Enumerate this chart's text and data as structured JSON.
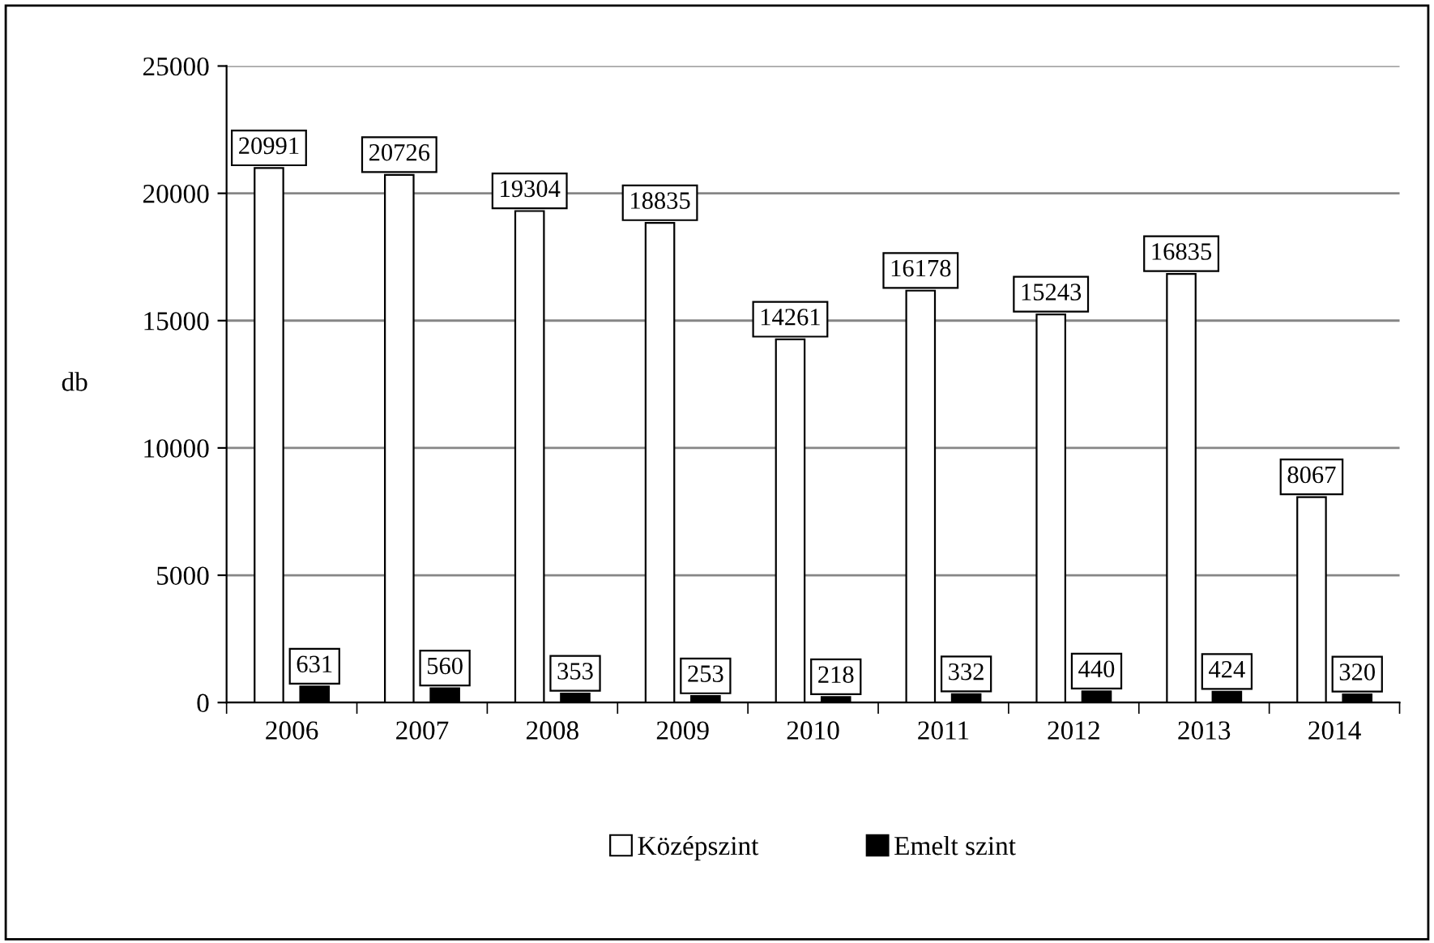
{
  "chart_data": {
    "type": "bar",
    "ylabel": "db",
    "categories": [
      "2006",
      "2007",
      "2008",
      "2009",
      "2010",
      "2011",
      "2012",
      "2013",
      "2014"
    ],
    "series": [
      {
        "name": "Középszint",
        "color": "#ffffff",
        "values": [
          20991,
          20726,
          19304,
          18835,
          14261,
          16178,
          15243,
          16835,
          8067
        ]
      },
      {
        "name": "Emelt szint",
        "color": "#000000",
        "values": [
          631,
          560,
          353,
          253,
          218,
          332,
          440,
          424,
          320
        ]
      }
    ],
    "ylim": [
      0,
      25000
    ],
    "yticks": [
      0,
      5000,
      10000,
      15000,
      20000,
      25000
    ],
    "grid": "y",
    "legend": "bottom",
    "data_labels": true
  }
}
